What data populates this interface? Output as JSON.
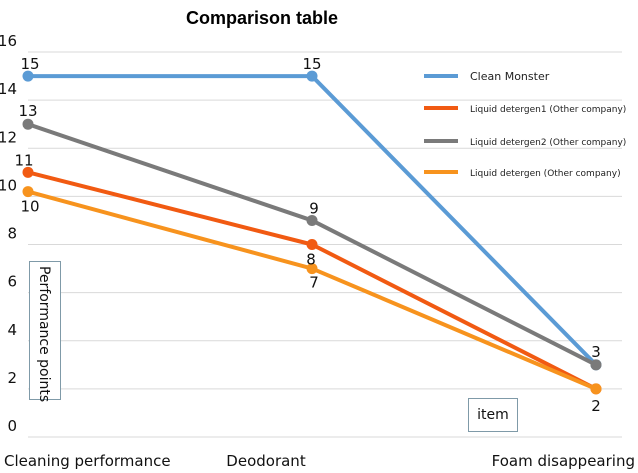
{
  "chart_data": {
    "type": "line",
    "title": "Comparison table",
    "xlabel": "item",
    "ylabel": "Performance points",
    "categories": [
      "Cleaning performance",
      "Deodorant",
      "Foam disappearing"
    ],
    "ylim": [
      0,
      16
    ],
    "yticks": [
      0,
      2,
      4,
      6,
      8,
      10,
      12,
      14,
      16
    ],
    "grid": "horizontal",
    "legend_position": "top-right",
    "series": [
      {
        "name": "Clean Monster",
        "values": [
          15,
          15,
          3
        ],
        "color": "#5b9bd5",
        "data_labels": [
          "15",
          "15",
          ""
        ]
      },
      {
        "name": "Liquid detergen1 (Other company)",
        "values": [
          11,
          8,
          2
        ],
        "color": "#f15a12",
        "data_labels": [
          "11",
          "8",
          ""
        ]
      },
      {
        "name": "Liquid detergen2 (Other company)",
        "values": [
          13,
          9,
          3
        ],
        "color": "#7a7a7a",
        "data_labels": [
          "13",
          "9",
          "3"
        ]
      },
      {
        "name": "Liquid detergen (Other company)",
        "values": [
          10.2,
          7,
          2
        ],
        "color": "#f7931e",
        "data_labels": [
          "10",
          "7",
          "2"
        ]
      }
    ]
  }
}
